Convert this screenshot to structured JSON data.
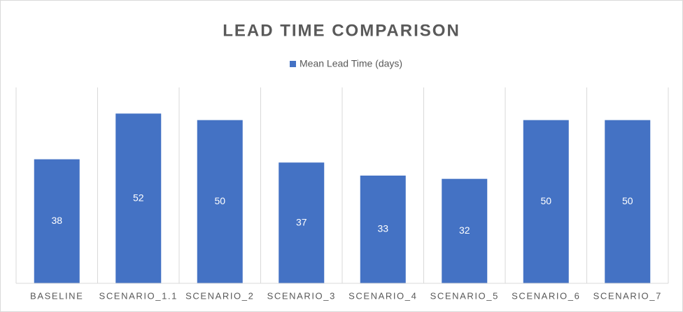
{
  "chart_data": {
    "type": "bar",
    "title": "LEAD TIME COMPARISON",
    "legend": "Mean Lead Time (days)",
    "categories": [
      "BASELINE",
      "SCENARIO_1.1",
      "SCENARIO_2",
      "SCENARIO_3",
      "SCENARIO_4",
      "SCENARIO_5",
      "SCENARIO_6",
      "SCENARIO_7"
    ],
    "values": [
      38,
      52,
      50,
      37,
      33,
      32,
      50,
      50
    ],
    "color": "#4472c4",
    "ylim": [
      0,
      60
    ],
    "grid": true
  }
}
